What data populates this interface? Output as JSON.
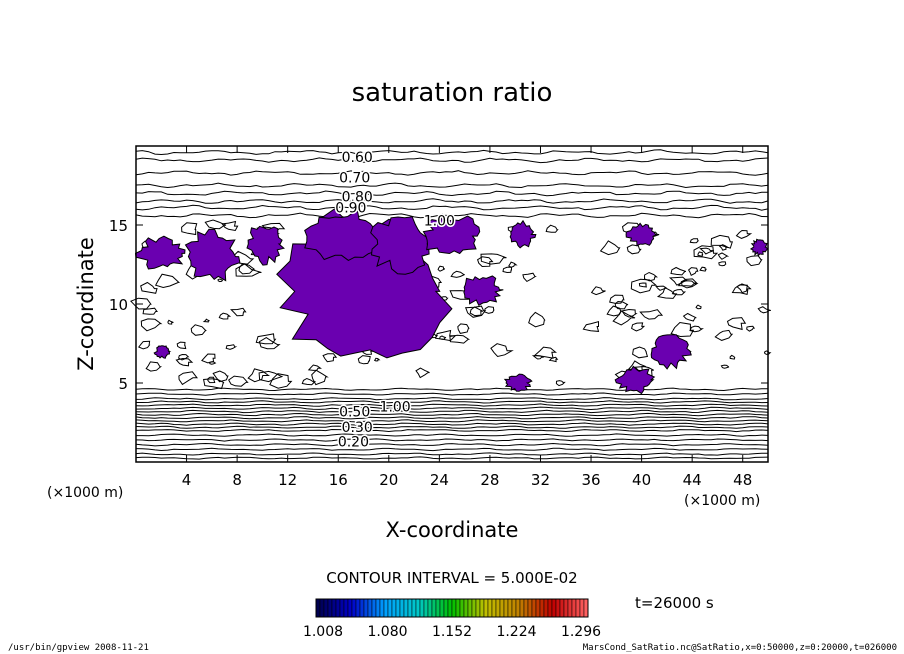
{
  "chart_data": {
    "type": "contour",
    "title": "saturation ratio",
    "xlabel": "X-coordinate",
    "ylabel": "Z-coordinate",
    "x_unit": "(×1000 m)",
    "y_unit": "(×1000 m)",
    "xlim": [
      0,
      50
    ],
    "ylim": [
      0,
      20
    ],
    "x_ticks": [
      "4",
      "8",
      "12",
      "16",
      "20",
      "24",
      "28",
      "32",
      "36",
      "40",
      "44",
      "48"
    ],
    "y_ticks": [
      "5",
      "10",
      "15"
    ],
    "contour_interval_text": "CONTOUR INTERVAL = 5.000E-02",
    "contour_labels": [
      {
        "text": "0.60",
        "x": 17.5,
        "z": 19.3
      },
      {
        "text": "0.70",
        "x": 17.3,
        "z": 18.0
      },
      {
        "text": "0.80",
        "x": 17.5,
        "z": 16.8
      },
      {
        "text": "0.90",
        "x": 17.0,
        "z": 16.1
      },
      {
        "text": "1.00",
        "x": 24.0,
        "z": 15.3
      },
      {
        "text": "1.00",
        "x": 20.5,
        "z": 3.5
      },
      {
        "text": "0.50",
        "x": 17.3,
        "z": 3.2
      },
      {
        "text": "0.30",
        "x": 17.5,
        "z": 2.2
      },
      {
        "text": "0.20",
        "x": 17.2,
        "z": 1.3
      }
    ],
    "shaded_region_color": "#6a00b0",
    "colorbar": {
      "ticks": [
        "1.008",
        "1.080",
        "1.152",
        "1.224",
        "1.296"
      ],
      "colors": [
        "#000050",
        "#0000c8",
        "#00a0ff",
        "#00c8c8",
        "#00c000",
        "#c0c000",
        "#c08000",
        "#c00000",
        "#ff6060"
      ]
    },
    "time_label": "t=26000 s",
    "footer_left": "/usr/bin/gpview   2008-11-21",
    "footer_right": "MarsCond_SatRatio.nc@SatRatio,x=0:50000,z=0:20000,t=026000"
  }
}
